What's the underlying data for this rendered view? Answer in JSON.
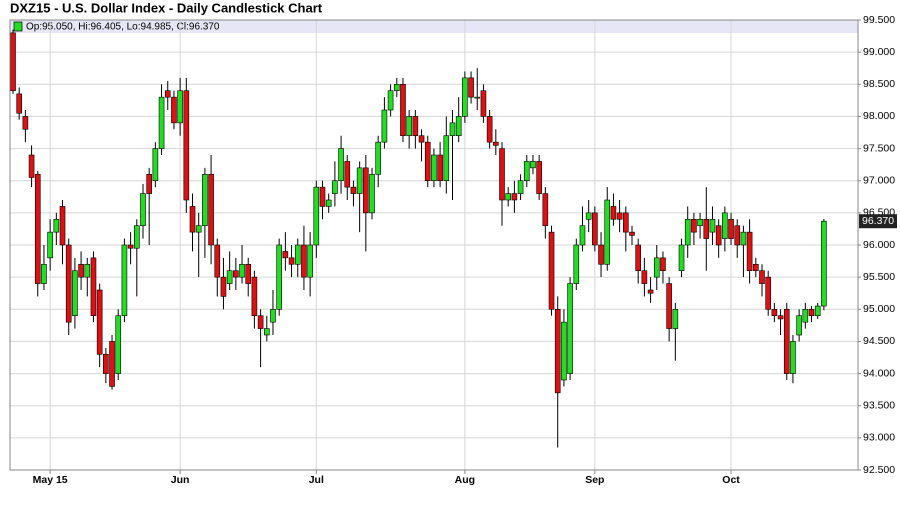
{
  "chart_data": {
    "type": "candlestick",
    "title": "DXZ15 - U.S. Dollar Index - Daily Candlestick Chart",
    "legend_text": "Op:95.050, Hi:96.405, Lo:94.985, Cl:96.370",
    "last_price_label": {
      "value": 96.37,
      "label": "96.370"
    },
    "up_color": "#22dd22",
    "down_color": "#dd1111",
    "grid": true,
    "ylim": [
      92.5,
      99.5
    ],
    "yticks": [
      {
        "value": 92.5,
        "label": "92.500"
      },
      {
        "value": 93,
        "label": "93.000"
      },
      {
        "value": 93.5,
        "label": "93.500"
      },
      {
        "value": 94,
        "label": "94.000"
      },
      {
        "value": 94.5,
        "label": "94.500"
      },
      {
        "value": 95,
        "label": "95.000"
      },
      {
        "value": 95.5,
        "label": "95.500"
      },
      {
        "value": 96,
        "label": "96.000"
      },
      {
        "value": 96.5,
        "label": "96.500"
      },
      {
        "value": 97,
        "label": "97.000"
      },
      {
        "value": 97.5,
        "label": "97.500"
      },
      {
        "value": 98,
        "label": "98.000"
      },
      {
        "value": 98.5,
        "label": "98.500"
      },
      {
        "value": 99,
        "label": "99.000"
      },
      {
        "value": 99.5,
        "label": "99.500"
      }
    ],
    "categories": [
      null,
      null,
      null,
      null,
      null,
      null,
      "May 15",
      null,
      null,
      null,
      null,
      null,
      null,
      null,
      null,
      null,
      null,
      null,
      null,
      null,
      null,
      null,
      null,
      null,
      null,
      null,
      null,
      "Jun",
      null,
      null,
      null,
      null,
      null,
      null,
      null,
      null,
      null,
      null,
      null,
      null,
      null,
      null,
      null,
      null,
      null,
      null,
      null,
      null,
      null,
      "Jul",
      null,
      null,
      null,
      null,
      null,
      null,
      null,
      null,
      null,
      null,
      null,
      null,
      null,
      null,
      null,
      null,
      null,
      null,
      null,
      null,
      null,
      null,
      null,
      "Aug",
      null,
      null,
      null,
      null,
      null,
      null,
      null,
      null,
      null,
      null,
      null,
      null,
      null,
      null,
      null,
      null,
      null,
      null,
      null,
      null,
      "Sep",
      null,
      null,
      null,
      null,
      null,
      null,
      null,
      null,
      null,
      null,
      null,
      null,
      null,
      null,
      null,
      null,
      null,
      null,
      null,
      null,
      null,
      "Oct",
      null,
      null,
      null,
      null,
      null,
      null,
      null,
      null,
      null,
      null,
      null,
      null,
      null,
      null,
      null
    ],
    "open": [
      99.3,
      98.35,
      98.0,
      97.4,
      97.1,
      95.4,
      95.8,
      96.2,
      96.6,
      96.0,
      94.9,
      95.7,
      95.5,
      95.8,
      95.3,
      94.3,
      94.5,
      94.0,
      94.9,
      96.0,
      95.95,
      96.3,
      97.1,
      97.0,
      97.5,
      98.4,
      98.3,
      97.9,
      98.4,
      96.6,
      96.2,
      96.3,
      97.1,
      96.0,
      95.5,
      95.4,
      95.6,
      95.5,
      95.7,
      95.5,
      94.9,
      94.6,
      94.8,
      95.0,
      95.9,
      95.8,
      95.7,
      96.0,
      95.5,
      96.0,
      96.9,
      96.6,
      96.8,
      97.0,
      97.3,
      96.9,
      96.8,
      97.2,
      96.5,
      97.1,
      97.6,
      98.1,
      98.4,
      98.5,
      97.7,
      98.0,
      97.7,
      97.6,
      97.0,
      97.4,
      97.0,
      97.7,
      97.7,
      98.0,
      98.6,
      98.3,
      98.4,
      98.0,
      97.6,
      97.5,
      96.7,
      96.8,
      96.8,
      97.0,
      97.2,
      97.3,
      96.8,
      96.2,
      95.0,
      93.9,
      94.0,
      95.4,
      96.0,
      96.4,
      96.5,
      96.0,
      95.7,
      96.6,
      96.5,
      96.5,
      96.2,
      96.0,
      95.6,
      95.3,
      95.5,
      95.8,
      95.4,
      94.7,
      95.6,
      96.0,
      96.4,
      96.3,
      96.4,
      96.2,
      96.3,
      96.1,
      96.4,
      96.3,
      96.0,
      96.2,
      95.7,
      95.6,
      95.5,
      95.0,
      94.9,
      95.0,
      94.0,
      94.6,
      94.8,
      95.0,
      94.9,
      95.05
    ],
    "high": [
      99.35,
      98.45,
      98.1,
      97.55,
      97.15,
      96.0,
      96.4,
      96.5,
      96.7,
      96.1,
      95.8,
      95.9,
      95.8,
      95.9,
      95.4,
      94.4,
      94.6,
      95.0,
      96.1,
      96.2,
      96.4,
      96.95,
      97.2,
      97.6,
      98.5,
      98.55,
      98.4,
      98.6,
      98.6,
      96.8,
      96.5,
      97.2,
      97.4,
      96.1,
      95.8,
      95.9,
      95.8,
      96.0,
      95.8,
      95.6,
      95.0,
      94.9,
      95.3,
      96.1,
      96.2,
      96.0,
      96.1,
      96.3,
      96.2,
      97.0,
      97.0,
      96.8,
      97.3,
      97.7,
      97.4,
      97.0,
      97.3,
      97.4,
      97.2,
      97.7,
      98.3,
      98.5,
      98.6,
      98.6,
      98.1,
      98.1,
      97.8,
      97.7,
      97.5,
      97.6,
      98.0,
      98.1,
      98.3,
      98.7,
      98.7,
      98.75,
      98.5,
      98.1,
      97.8,
      97.6,
      96.9,
      97.0,
      97.1,
      97.4,
      97.4,
      97.4,
      96.9,
      96.3,
      95.2,
      95.0,
      95.5,
      96.1,
      96.6,
      96.7,
      96.6,
      96.2,
      96.9,
      96.8,
      96.7,
      96.6,
      96.3,
      96.1,
      95.8,
      95.5,
      96.0,
      95.9,
      95.5,
      95.1,
      96.1,
      96.6,
      96.5,
      96.5,
      96.9,
      96.6,
      96.4,
      96.6,
      96.5,
      96.4,
      96.3,
      96.4,
      95.8,
      95.7,
      95.6,
      95.1,
      95.0,
      95.1,
      94.6,
      95.0,
      95.1,
      95.05,
      95.1,
      96.405
    ],
    "low": [
      98.35,
      97.95,
      97.6,
      96.9,
      95.2,
      95.3,
      95.6,
      96.0,
      95.7,
      94.6,
      94.7,
      95.3,
      95.2,
      94.8,
      94.1,
      93.85,
      93.75,
      93.9,
      94.8,
      95.7,
      95.2,
      96.1,
      96.0,
      96.9,
      97.4,
      98.1,
      97.8,
      97.7,
      96.5,
      95.9,
      95.5,
      95.8,
      95.7,
      95.2,
      95.0,
      95.3,
      95.3,
      95.4,
      95.2,
      94.7,
      94.1,
      94.5,
      94.6,
      94.9,
      95.6,
      95.5,
      95.5,
      95.3,
      95.2,
      95.8,
      96.4,
      96.5,
      96.6,
      96.8,
      96.7,
      96.6,
      96.2,
      95.9,
      96.4,
      96.9,
      97.5,
      98.0,
      98.3,
      97.6,
      97.5,
      97.5,
      97.3,
      96.9,
      96.9,
      96.9,
      96.8,
      96.7,
      97.6,
      97.9,
      98.2,
      98.1,
      97.9,
      97.5,
      97.4,
      96.3,
      96.6,
      96.5,
      96.7,
      96.9,
      97.1,
      96.7,
      96.1,
      94.9,
      92.85,
      93.8,
      93.9,
      95.3,
      95.9,
      96.2,
      95.9,
      95.5,
      95.6,
      96.3,
      96.2,
      95.9,
      96.0,
      95.4,
      95.2,
      95.1,
      95.3,
      95.4,
      94.5,
      94.2,
      95.5,
      95.8,
      96.0,
      96.1,
      95.6,
      96.0,
      95.8,
      95.9,
      96.0,
      95.8,
      95.5,
      95.4,
      95.5,
      95.2,
      94.9,
      94.8,
      94.6,
      93.9,
      93.85,
      94.5,
      94.7,
      94.8,
      94.85,
      94.985
    ],
    "close": [
      98.4,
      98.05,
      97.8,
      97.05,
      95.4,
      95.7,
      96.2,
      96.4,
      96.0,
      94.8,
      95.6,
      95.5,
      95.7,
      94.9,
      94.3,
      94.0,
      93.8,
      94.9,
      96.0,
      95.95,
      96.3,
      96.8,
      96.8,
      97.5,
      98.3,
      98.3,
      97.9,
      98.4,
      96.7,
      96.2,
      96.3,
      97.1,
      96.0,
      95.5,
      95.2,
      95.6,
      95.5,
      95.7,
      95.4,
      94.9,
      94.7,
      94.7,
      95.0,
      96.0,
      95.8,
      95.7,
      96.0,
      95.5,
      96.0,
      96.9,
      96.6,
      96.7,
      97.0,
      97.5,
      96.9,
      96.8,
      97.2,
      96.5,
      97.1,
      97.6,
      98.1,
      98.4,
      98.5,
      97.7,
      98.0,
      97.7,
      97.6,
      97.0,
      97.4,
      97.0,
      97.7,
      97.9,
      98.0,
      98.6,
      98.3,
      98.3,
      98.0,
      97.6,
      97.55,
      96.7,
      96.8,
      96.7,
      97.0,
      97.3,
      97.3,
      96.8,
      96.3,
      95.0,
      93.7,
      94.8,
      95.4,
      96.0,
      96.3,
      96.5,
      96.0,
      95.7,
      96.7,
      96.4,
      96.4,
      96.2,
      96.15,
      95.6,
      95.4,
      95.25,
      95.8,
      95.6,
      94.7,
      95.0,
      96.0,
      96.4,
      96.2,
      96.4,
      96.1,
      96.4,
      96.0,
      96.5,
      96.1,
      96.0,
      96.2,
      95.6,
      95.6,
      95.4,
      95.0,
      94.9,
      94.85,
      94.0,
      94.5,
      94.9,
      95.0,
      94.9,
      95.05,
      96.37
    ]
  }
}
